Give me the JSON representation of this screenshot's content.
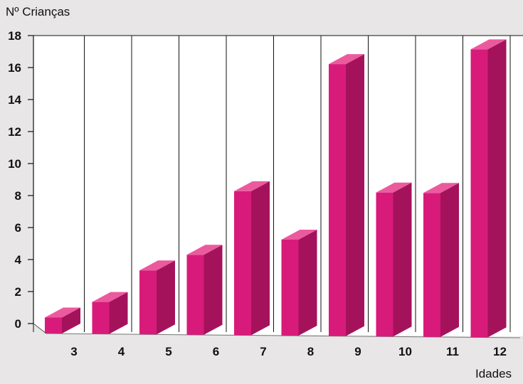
{
  "chart_data": {
    "type": "bar",
    "title": "",
    "ylabel": "Nº Crianças",
    "xlabel": "Idades",
    "categories": [
      "3",
      "4",
      "5",
      "6",
      "7",
      "8",
      "9",
      "10",
      "11",
      "12"
    ],
    "values": [
      1,
      2,
      4,
      5,
      9,
      6,
      17,
      9,
      9,
      18
    ],
    "ylim": [
      0,
      18
    ],
    "yticks": [
      "0",
      "2",
      "4",
      "6",
      "8",
      "10",
      "12",
      "14",
      "16",
      "18"
    ],
    "grid": true,
    "style": "3d",
    "colors": {
      "bar_front": "#d81b7a",
      "bar_side": "#a5125c",
      "bar_top": "#ec5a9e",
      "plot_bg": "#ffffff",
      "grid": "#111111"
    }
  }
}
